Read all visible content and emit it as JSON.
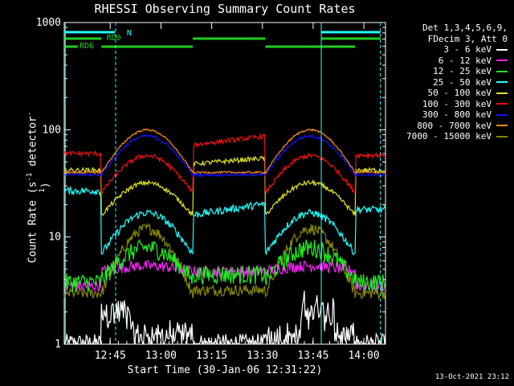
{
  "chart_data": {
    "type": "line",
    "title": "RHESSI Observing Summary Count Rates",
    "xlabel": "Start Time (30-Jan-06 12:31:22)",
    "ylabel_main": "Count Rate (s",
    "ylabel_sup1": "-1",
    "ylabel_mid": " detector",
    "ylabel_sup2": "-1",
    "ylabel_end": ")",
    "y_scale": "log",
    "ylim": [
      1,
      1000
    ],
    "xlim_minutes": [
      0,
      95
    ],
    "x_ticks": [
      {
        "label": "12:45",
        "minute": 13.6
      },
      {
        "label": "13:00",
        "minute": 28.6
      },
      {
        "label": "13:15",
        "minute": 43.6
      },
      {
        "label": "13:30",
        "minute": 58.6
      },
      {
        "label": "13:45",
        "minute": 73.6
      },
      {
        "label": "14:00",
        "minute": 88.6
      }
    ],
    "y_ticks": [
      {
        "label": "1",
        "value": 1
      },
      {
        "label": "10",
        "value": 10
      },
      {
        "label": "100",
        "value": 100
      },
      {
        "label": "1000",
        "value": 1000
      }
    ],
    "legend_header": [
      "Det 1,3,4,5,6,9,",
      "FDecim 3, Att 0"
    ],
    "series": [
      {
        "name": "3 - 6 keV",
        "color": "#ffffff",
        "key": "s1"
      },
      {
        "name": "6 - 12 keV",
        "color": "#ff22ff",
        "key": "s2"
      },
      {
        "name": "12 - 25 keV",
        "color": "#22ee22",
        "key": "s3"
      },
      {
        "name": "25 - 50 keV",
        "color": "#22ffff",
        "key": "s4"
      },
      {
        "name": "50 - 100 keV",
        "color": "#e0e020",
        "key": "s5"
      },
      {
        "name": "100 - 300 keV",
        "color": "#ee1111",
        "key": "s6"
      },
      {
        "name": "300 - 800 keV",
        "color": "#1111ff",
        "key": "s7"
      },
      {
        "name": "800 - 7000 keV",
        "color": "#ff8c1a",
        "key": "s8"
      },
      {
        "name": "7000 - 15000 keV",
        "color": "#888800",
        "key": "s9"
      }
    ],
    "flag_labels": [
      {
        "text": "N",
        "color": "#22ffff"
      },
      {
        "text": "RD0",
        "color": "#22cc22"
      },
      {
        "text": "RD6",
        "color": "#22cc22"
      }
    ],
    "timestamp": "13-Oct-2021 23:12"
  }
}
